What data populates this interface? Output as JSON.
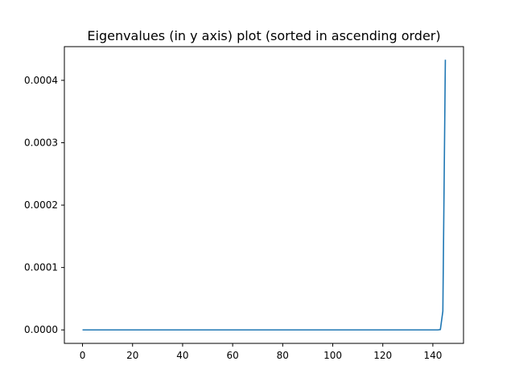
{
  "chart_data": {
    "type": "line",
    "title": "Eigenvalues (in y axis) plot (sorted in ascending order)",
    "xlabel": "",
    "ylabel": "",
    "xlim": [
      -7.25,
      152.25
    ],
    "ylim": [
      -2.16e-05,
      0.000454
    ],
    "grid": false,
    "legend": null,
    "x_ticks": [
      0,
      20,
      40,
      60,
      80,
      100,
      120,
      140
    ],
    "x_tick_labels": [
      "0",
      "20",
      "40",
      "60",
      "80",
      "100",
      "120",
      "140"
    ],
    "y_ticks": [
      0,
      0.0001,
      0.0002,
      0.0003,
      0.0004
    ],
    "y_tick_labels": [
      "0.0000",
      "0.0001",
      "0.0002",
      "0.0003",
      "0.0004"
    ],
    "series": [
      {
        "color": "#1f77b4",
        "x": [
          0,
          10,
          20,
          30,
          40,
          50,
          60,
          70,
          80,
          90,
          100,
          110,
          120,
          130,
          140,
          142,
          143,
          144,
          145
        ],
        "y": [
          0,
          0,
          0,
          0,
          0,
          0,
          0,
          0,
          0,
          0,
          0,
          0,
          0,
          0,
          0,
          0,
          5e-07,
          3e-05,
          0.000433
        ]
      }
    ]
  }
}
